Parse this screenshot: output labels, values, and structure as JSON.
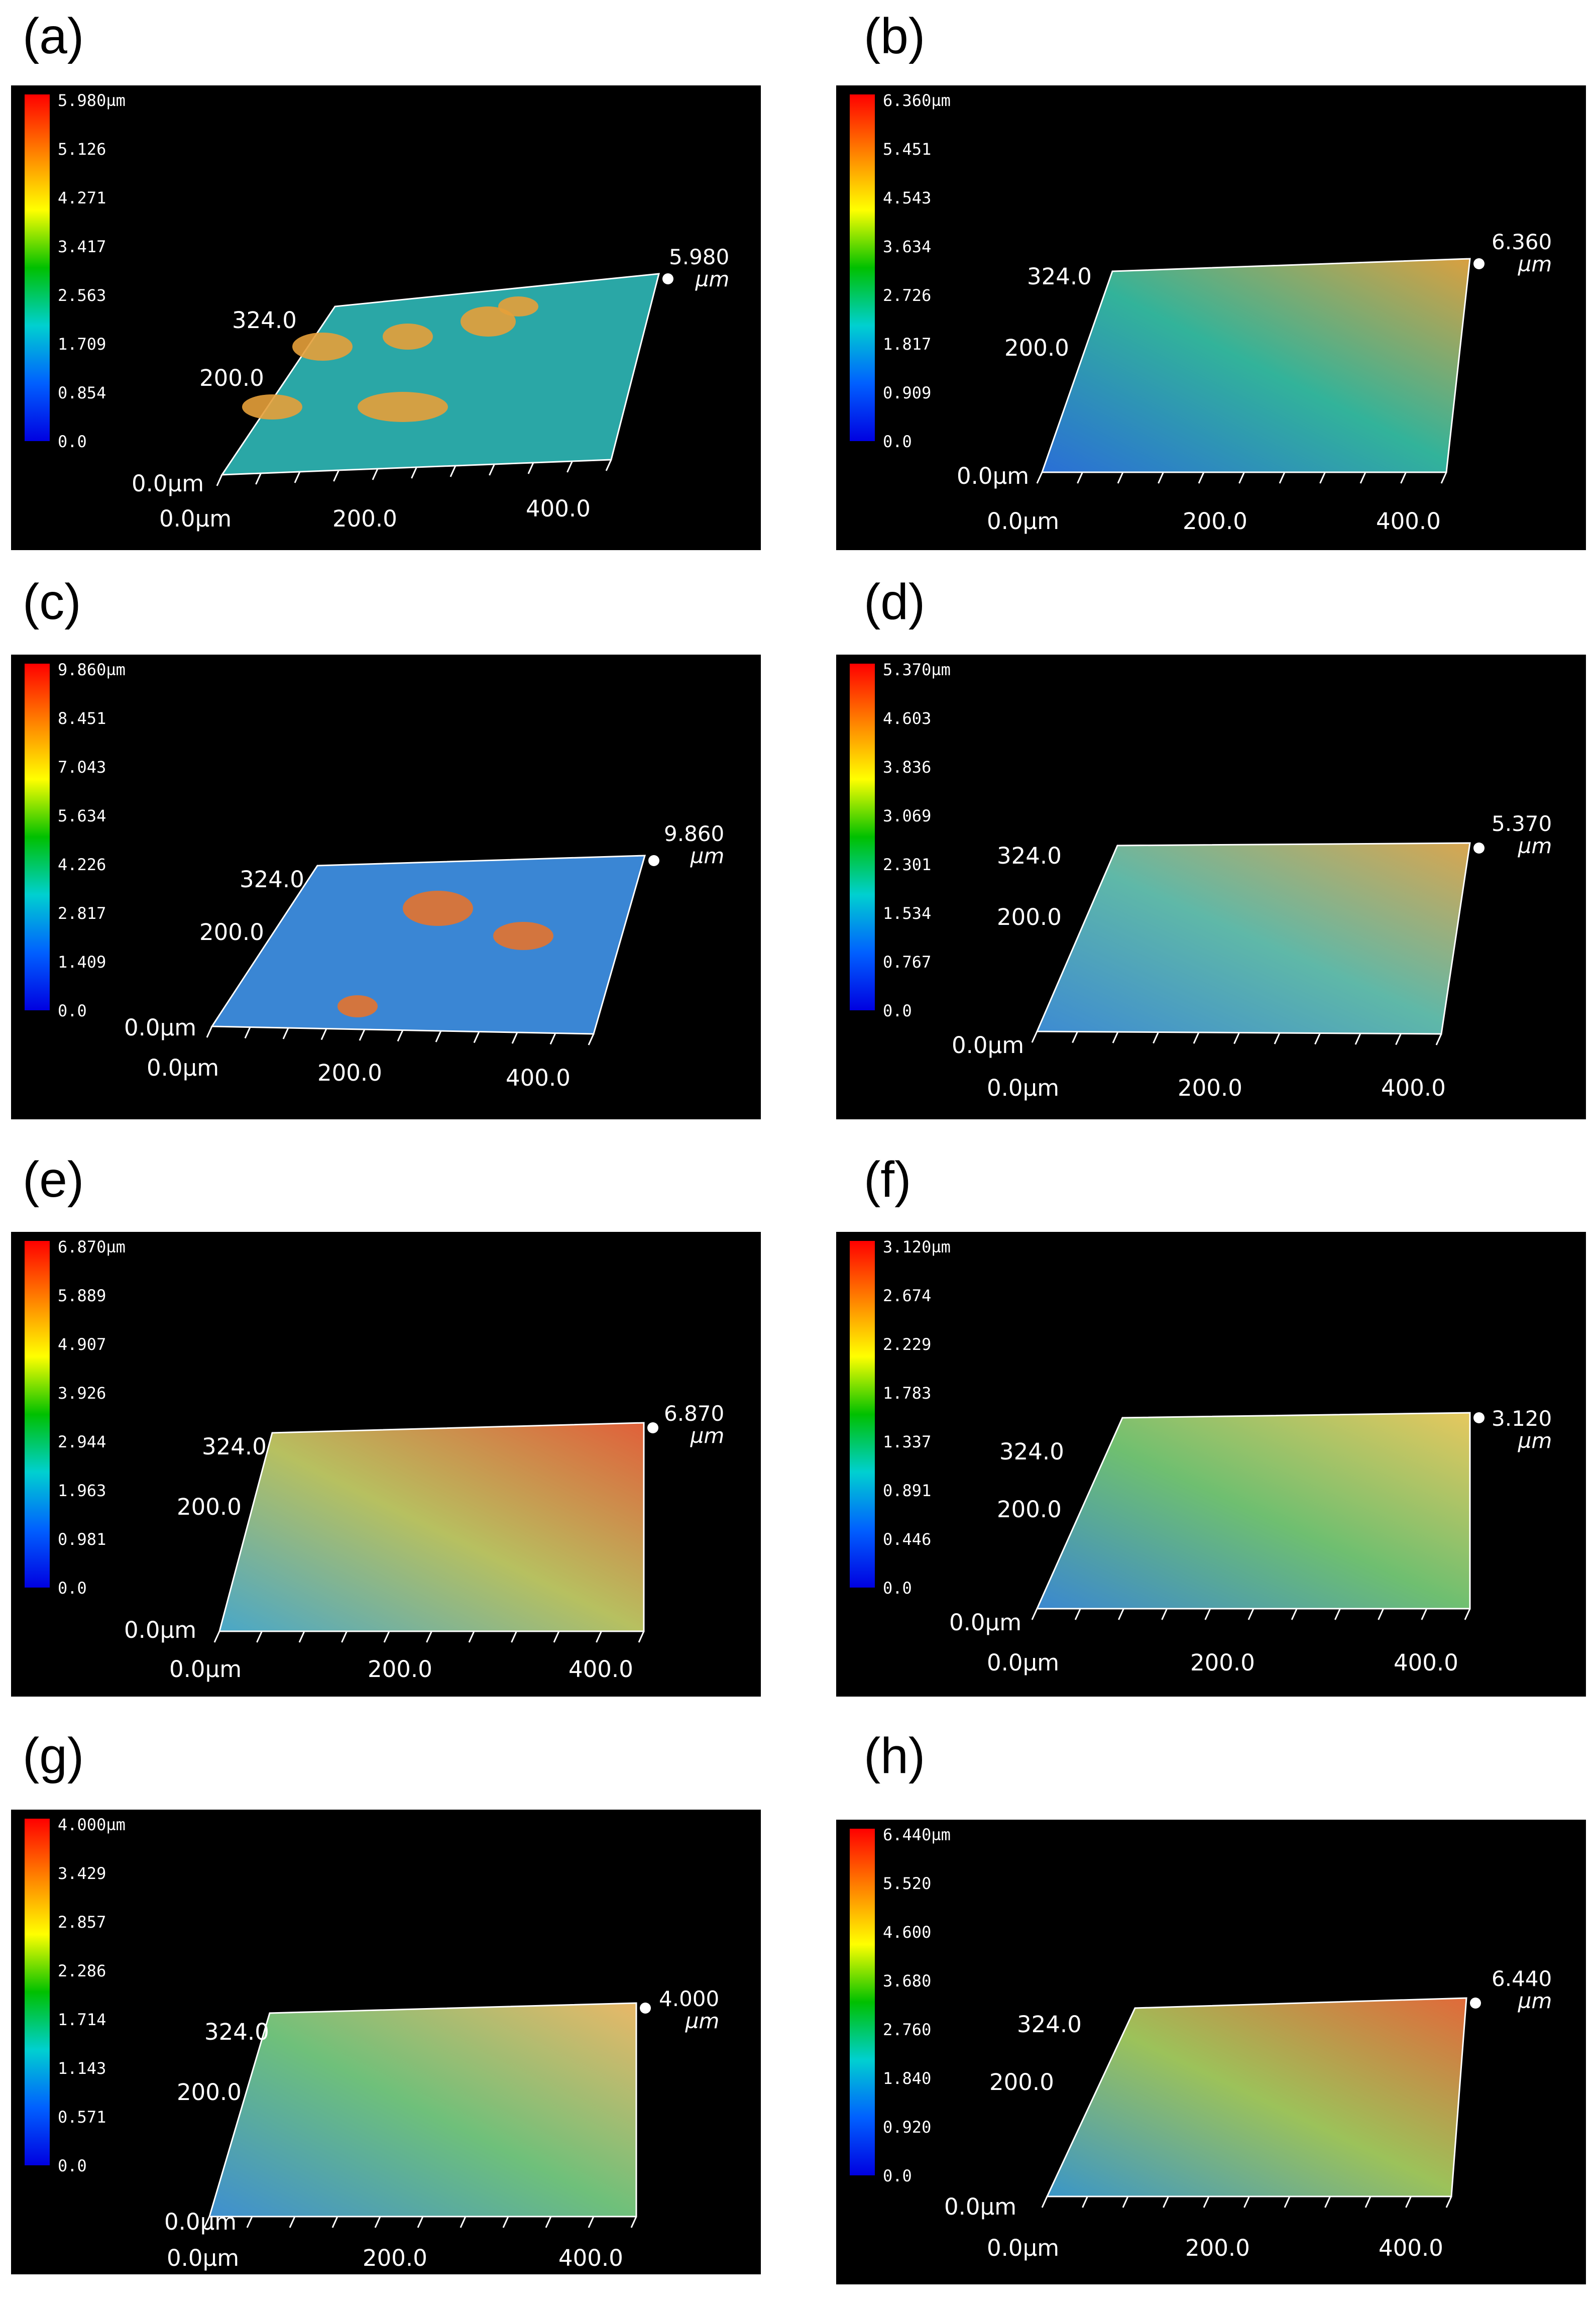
{
  "panels": [
    {
      "label": "(a)",
      "zmax_value": "5.980",
      "zmax_unit": "µm",
      "scale": [
        "5.980µm",
        "5.126",
        "4.271",
        "3.417",
        "2.563",
        "1.709",
        "0.854",
        "0.0"
      ],
      "y_labels": [
        "324.0",
        "200.0",
        "0.0µm"
      ],
      "x_labels": [
        "0.0µm",
        "200.0",
        "400.0"
      ]
    },
    {
      "label": "(b)",
      "zmax_value": "6.360",
      "zmax_unit": "µm",
      "scale": [
        "6.360µm",
        "5.451",
        "4.543",
        "3.634",
        "2.726",
        "1.817",
        "0.909",
        "0.0"
      ],
      "y_labels": [
        "324.0",
        "200.0",
        "0.0µm"
      ],
      "x_labels": [
        "0.0µm",
        "200.0",
        "400.0"
      ]
    },
    {
      "label": "(c)",
      "zmax_value": "9.860",
      "zmax_unit": "µm",
      "scale": [
        "9.860µm",
        "8.451",
        "7.043",
        "5.634",
        "4.226",
        "2.817",
        "1.409",
        "0.0"
      ],
      "y_labels": [
        "324.0",
        "200.0",
        "0.0µm"
      ],
      "x_labels": [
        "0.0µm",
        "200.0",
        "400.0"
      ]
    },
    {
      "label": "(d)",
      "zmax_value": "5.370",
      "zmax_unit": "µm",
      "scale": [
        "5.370µm",
        "4.603",
        "3.836",
        "3.069",
        "2.301",
        "1.534",
        "0.767",
        "0.0"
      ],
      "y_labels": [
        "324.0",
        "200.0",
        "0.0µm"
      ],
      "x_labels": [
        "0.0µm",
        "200.0",
        "400.0"
      ]
    },
    {
      "label": "(e)",
      "zmax_value": "6.870",
      "zmax_unit": "µm",
      "scale": [
        "6.870µm",
        "5.889",
        "4.907",
        "3.926",
        "2.944",
        "1.963",
        "0.981",
        "0.0"
      ],
      "y_labels": [
        "324.0",
        "200.0",
        "0.0µm"
      ],
      "x_labels": [
        "0.0µm",
        "200.0",
        "400.0"
      ]
    },
    {
      "label": "(f)",
      "zmax_value": "3.120",
      "zmax_unit": "µm",
      "scale": [
        "3.120µm",
        "2.674",
        "2.229",
        "1.783",
        "1.337",
        "0.891",
        "0.446",
        "0.0"
      ],
      "y_labels": [
        "324.0",
        "200.0",
        "0.0µm"
      ],
      "x_labels": [
        "0.0µm",
        "200.0",
        "400.0"
      ]
    },
    {
      "label": "(g)",
      "zmax_value": "4.000",
      "zmax_unit": "µm",
      "scale": [
        "4.000µm",
        "3.429",
        "2.857",
        "2.286",
        "1.714",
        "1.143",
        "0.571",
        "0.0"
      ],
      "y_labels": [
        "324.0",
        "200.0",
        "0.0µm"
      ],
      "x_labels": [
        "0.0µm",
        "200.0",
        "400.0"
      ]
    },
    {
      "label": "(h)",
      "zmax_value": "6.440",
      "zmax_unit": "µm",
      "scale": [
        "6.440µm",
        "5.520",
        "4.600",
        "3.680",
        "2.760",
        "1.840",
        "0.920",
        "0.0"
      ],
      "y_labels": [
        "324.0",
        "200.0",
        "0.0µm"
      ],
      "x_labels": [
        "0.0µm",
        "200.0",
        "400.0"
      ]
    }
  ],
  "colors": {
    "background": "#000000",
    "colormap": [
      "#ff0000",
      "#ff8000",
      "#ffff00",
      "#00c000",
      "#00d0d0",
      "#0060ff",
      "#0000e0"
    ]
  }
}
